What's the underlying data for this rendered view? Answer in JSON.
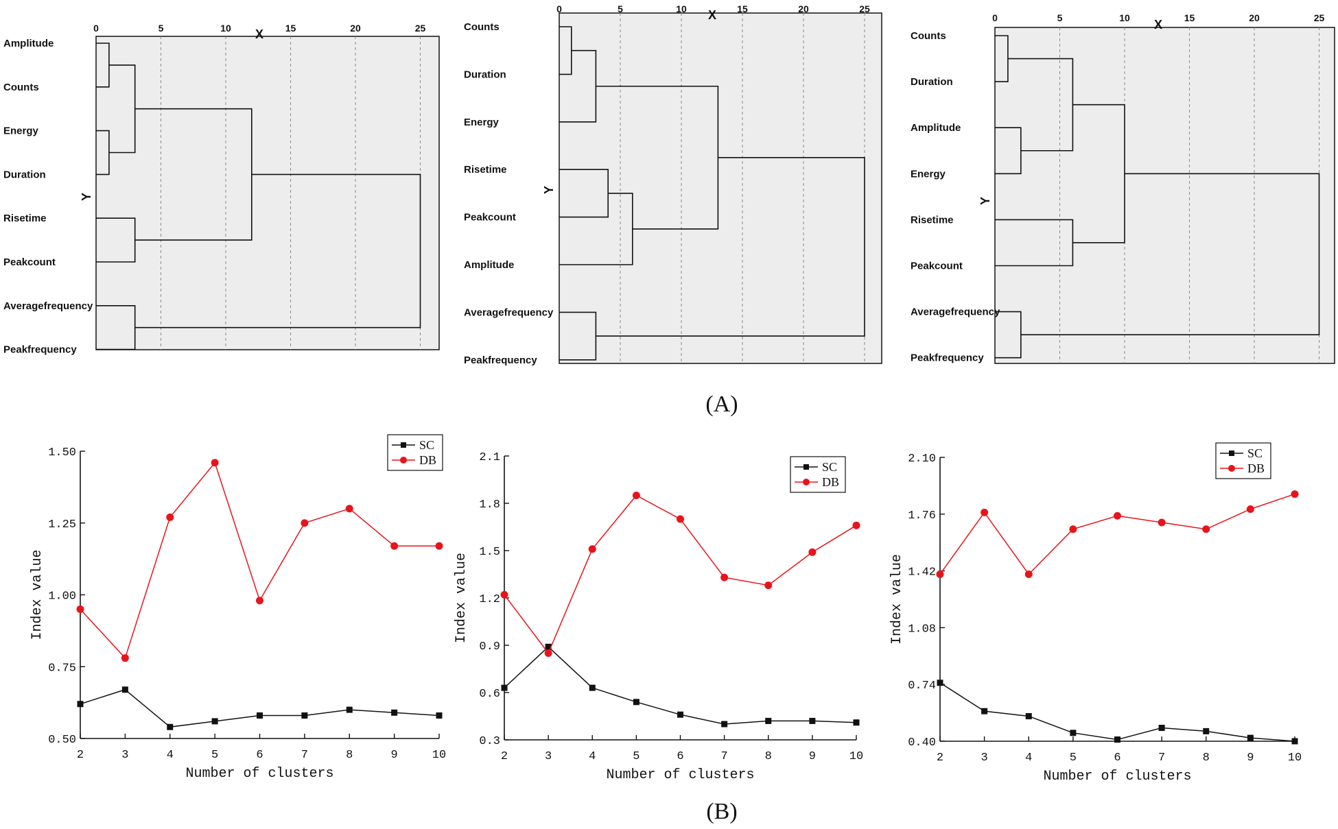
{
  "panel_labels": {
    "top": "(A)",
    "bottom": "(B)"
  },
  "colors": {
    "dendrogram_fill": "#ededed",
    "line": "#111111",
    "sc": "#111111",
    "db": "#e8141c",
    "grid": "#888888"
  },
  "chart_data": [
    {
      "type": "dendrogram",
      "xlabel": "X",
      "ylabel": "Y",
      "xlim": [
        0,
        25
      ],
      "xticks": [
        "0",
        "5",
        "10",
        "15",
        "20",
        "25"
      ],
      "leaves": [
        "Amplitude",
        "Counts",
        "Energy",
        "Duration",
        "Risetime",
        "Peakcount",
        "Averagefrequency",
        "Peakfrequency"
      ],
      "merges": [
        [
          0,
          1,
          1
        ],
        [
          2,
          3,
          1
        ],
        [
          4,
          5,
          3
        ],
        [
          6,
          7,
          3
        ],
        [
          -1,
          -2,
          3
        ],
        [
          -5,
          -3,
          12
        ],
        [
          -6,
          -4,
          25
        ]
      ]
    },
    {
      "type": "dendrogram",
      "xlabel": "X",
      "ylabel": "Y",
      "xlim": [
        0,
        25
      ],
      "xticks": [
        "0",
        "5",
        "10",
        "15",
        "20",
        "25"
      ],
      "leaves": [
        "Counts",
        "Duration",
        "Energy",
        "Risetime",
        "Peakcount",
        "Amplitude",
        "Averagefrequency",
        "Peakfrequency"
      ],
      "merges": [
        [
          0,
          1,
          1
        ],
        [
          -1,
          2,
          3
        ],
        [
          3,
          4,
          4
        ],
        [
          -3,
          5,
          6
        ],
        [
          -2,
          -4,
          13
        ],
        [
          6,
          7,
          3
        ],
        [
          -5,
          -6,
          25
        ]
      ]
    },
    {
      "type": "dendrogram",
      "xlabel": "X",
      "ylabel": "Y",
      "xlim": [
        0,
        25
      ],
      "xticks": [
        "0",
        "5",
        "10",
        "15",
        "20",
        "25"
      ],
      "leaves": [
        "Counts",
        "Duration",
        "Amplitude",
        "Energy",
        "Risetime",
        "Peakcount",
        "Averagefrequency",
        "Peakfrequency"
      ],
      "merges": [
        [
          0,
          1,
          1
        ],
        [
          2,
          3,
          2
        ],
        [
          -1,
          -2,
          6
        ],
        [
          4,
          5,
          6
        ],
        [
          -3,
          -4,
          10
        ],
        [
          6,
          7,
          2
        ],
        [
          -5,
          -6,
          25
        ]
      ]
    },
    {
      "type": "line",
      "title": "",
      "xlabel": "Number of clusters",
      "ylabel": "Index value",
      "x": [
        2,
        3,
        4,
        5,
        6,
        7,
        8,
        9,
        10
      ],
      "xticks": [
        "2",
        "3",
        "4",
        "5",
        "6",
        "7",
        "8",
        "9",
        "10"
      ],
      "yticks": [
        "0.50",
        "0.75",
        "1.00",
        "1.25",
        "1.50"
      ],
      "ylim": [
        0.5,
        1.5
      ],
      "series": [
        {
          "name": "SC",
          "values": [
            0.62,
            0.67,
            0.54,
            0.56,
            0.58,
            0.58,
            0.6,
            0.59,
            0.58
          ]
        },
        {
          "name": "DB",
          "values": [
            0.95,
            0.78,
            1.27,
            1.46,
            0.98,
            1.25,
            1.3,
            1.17,
            1.17
          ]
        }
      ]
    },
    {
      "type": "line",
      "title": "",
      "xlabel": "Number of clusters",
      "ylabel": "Index value",
      "x": [
        2,
        3,
        4,
        5,
        6,
        7,
        8,
        9,
        10
      ],
      "xticks": [
        "2",
        "3",
        "4",
        "5",
        "6",
        "7",
        "8",
        "9",
        "10"
      ],
      "yticks": [
        "0.3",
        "0.6",
        "0.9",
        "1.2",
        "1.5",
        "1.8",
        "2.1"
      ],
      "ylim": [
        0.3,
        2.1
      ],
      "series": [
        {
          "name": "SC",
          "values": [
            0.63,
            0.89,
            0.63,
            0.54,
            0.46,
            0.4,
            0.42,
            0.42,
            0.41
          ]
        },
        {
          "name": "DB",
          "values": [
            1.22,
            0.85,
            1.51,
            1.85,
            1.7,
            1.33,
            1.28,
            1.49,
            1.66
          ]
        }
      ]
    },
    {
      "type": "line",
      "title": "",
      "xlabel": "Number of clusters",
      "ylabel": "Index value",
      "x": [
        2,
        3,
        4,
        5,
        6,
        7,
        8,
        9,
        10
      ],
      "xticks": [
        "2",
        "3",
        "4",
        "5",
        "6",
        "7",
        "8",
        "9",
        "10"
      ],
      "yticks": [
        "0.40",
        "0.74",
        "1.08",
        "1.42",
        "1.76",
        "2.10"
      ],
      "ylim": [
        0.4,
        2.1
      ],
      "series": [
        {
          "name": "SC",
          "values": [
            0.75,
            0.58,
            0.55,
            0.45,
            0.41,
            0.48,
            0.46,
            0.42,
            0.4
          ]
        },
        {
          "name": "DB",
          "values": [
            1.4,
            1.77,
            1.4,
            1.67,
            1.75,
            1.71,
            1.67,
            1.79,
            1.88
          ]
        }
      ]
    }
  ]
}
